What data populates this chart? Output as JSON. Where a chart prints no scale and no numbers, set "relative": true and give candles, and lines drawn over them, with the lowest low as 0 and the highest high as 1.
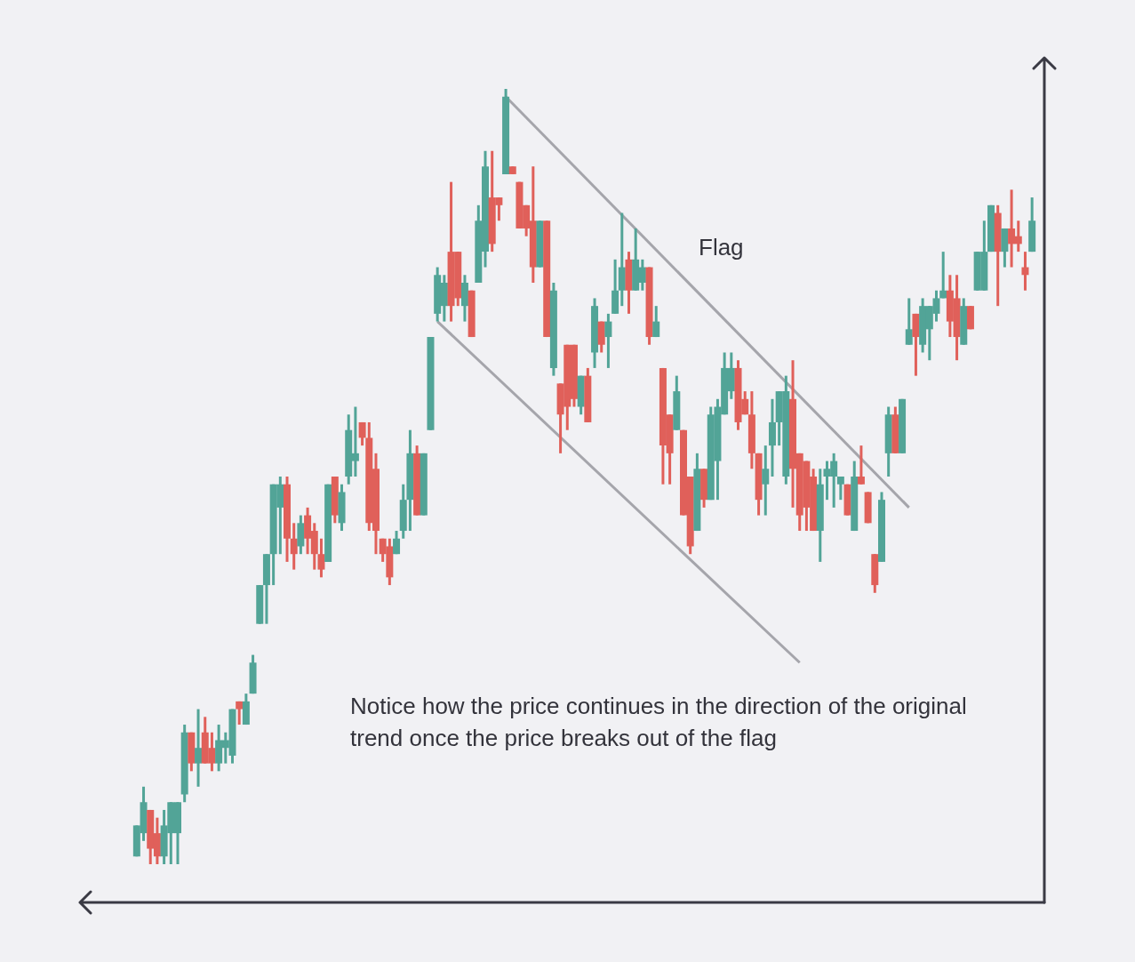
{
  "chart_data": {
    "type": "candlestick",
    "relative": true,
    "categories": [
      null,
      null,
      null,
      null,
      null,
      null,
      null,
      null,
      null,
      null,
      null,
      null,
      null,
      null,
      null,
      null,
      null,
      null,
      null,
      null,
      null,
      null,
      null,
      null,
      null,
      null,
      null,
      null,
      null,
      null,
      null,
      null,
      null,
      null,
      null,
      null,
      null,
      null,
      null,
      null,
      null,
      null,
      null,
      null,
      null,
      null,
      null,
      null,
      null,
      null,
      null,
      null,
      null,
      null,
      null,
      null,
      null,
      null,
      null,
      null,
      null,
      null,
      null,
      null,
      null,
      null,
      null,
      null,
      null,
      null,
      null,
      null,
      null,
      null,
      null,
      null,
      null,
      null,
      null,
      null,
      null,
      null,
      null,
      null,
      null,
      null,
      null,
      null,
      null,
      null,
      null,
      null,
      null,
      null,
      null,
      null,
      null,
      null,
      null,
      null,
      null,
      null,
      null,
      null,
      null,
      null,
      null,
      null,
      null,
      null,
      null,
      null,
      null,
      null,
      null,
      null,
      null,
      null,
      null,
      null,
      null,
      null,
      null,
      null,
      null,
      null,
      null,
      null,
      null,
      null,
      null,
      null
    ],
    "ohlc": [
      [
        0.01,
        0.05,
        0.01,
        0.05
      ],
      [
        0.04,
        0.1,
        0.03,
        0.08
      ],
      [
        0.07,
        0.07,
        0,
        0.02
      ],
      [
        0.04,
        0.06,
        0,
        0.01
      ],
      [
        0.01,
        0.07,
        0,
        0.05
      ],
      [
        0.04,
        0.08,
        0,
        0.08
      ],
      [
        0.04,
        0.08,
        0,
        0.08
      ],
      [
        0.09,
        0.18,
        0.08,
        0.17
      ],
      [
        0.17,
        0.17,
        0.12,
        0.13
      ],
      [
        0.13,
        0.2,
        0.1,
        0.15
      ],
      [
        0.17,
        0.19,
        0.13,
        0.13
      ],
      [
        0.15,
        0.17,
        0.12,
        0.13
      ],
      [
        0.13,
        0.18,
        0.12,
        0.16
      ],
      [
        0.15,
        0.17,
        0.13,
        0.16
      ],
      [
        0.14,
        0.2,
        0.13,
        0.2
      ],
      [
        0.21,
        0.21,
        0.18,
        0.2
      ],
      [
        0.18,
        0.22,
        0.18,
        0.21
      ],
      [
        0.22,
        0.27,
        0.22,
        0.26
      ],
      [
        0.31,
        0.36,
        0.31,
        0.36
      ],
      [
        0.36,
        0.4,
        0.31,
        0.4
      ],
      [
        0.4,
        0.49,
        0.36,
        0.49
      ],
      [
        0.46,
        0.5,
        0.4,
        0.49
      ],
      [
        0.49,
        0.5,
        0.39,
        0.42
      ],
      [
        0.42,
        0.44,
        0.38,
        0.4
      ],
      [
        0.41,
        0.45,
        0.4,
        0.44
      ],
      [
        0.45,
        0.46,
        0.4,
        0.42
      ],
      [
        0.43,
        0.44,
        0.38,
        0.4
      ],
      [
        0.4,
        0.42,
        0.37,
        0.38
      ],
      [
        0.39,
        0.49,
        0.39,
        0.49
      ],
      [
        0.5,
        0.5,
        0.44,
        0.45
      ],
      [
        0.44,
        0.49,
        0.43,
        0.48
      ],
      [
        0.5,
        0.58,
        0.49,
        0.56
      ],
      [
        0.52,
        0.59,
        0.5,
        0.53
      ],
      [
        0.57,
        0.57,
        0.54,
        0.55
      ],
      [
        0.55,
        0.57,
        0.43,
        0.44
      ],
      [
        0.51,
        0.53,
        0.4,
        0.43
      ],
      [
        0.42,
        0.42,
        0.39,
        0.4
      ],
      [
        0.41,
        0.42,
        0.36,
        0.37
      ],
      [
        0.4,
        0.43,
        0.4,
        0.42
      ],
      [
        0.43,
        0.49,
        0.42,
        0.47
      ],
      [
        0.47,
        0.56,
        0.43,
        0.53
      ],
      [
        0.53,
        0.54,
        0.45,
        0.45
      ],
      [
        0.45,
        0.53,
        0.45,
        0.53
      ],
      [
        0.56,
        0.68,
        0.56,
        0.68
      ],
      [
        0.71,
        0.77,
        0.7,
        0.76
      ],
      [
        0.72,
        0.76,
        0.7,
        0.75
      ],
      [
        0.79,
        0.88,
        0.7,
        0.72
      ],
      [
        0.79,
        0.79,
        0.72,
        0.73
      ],
      [
        0.72,
        0.76,
        0.7,
        0.75
      ],
      [
        0.74,
        0.74,
        0.68,
        0.68
      ],
      [
        0.75,
        0.85,
        0.75,
        0.83
      ],
      [
        0.79,
        0.92,
        0.77,
        0.9
      ],
      [
        0.86,
        0.92,
        0.79,
        0.8
      ],
      [
        0.86,
        0.86,
        0.83,
        0.85
      ],
      [
        0.89,
        1,
        0.89,
        0.99
      ],
      [
        0.9,
        0.9,
        0.89,
        0.89
      ],
      [
        0.88,
        0.88,
        0.82,
        0.82
      ],
      [
        0.85,
        0.85,
        0.81,
        0.82
      ],
      [
        0.83,
        0.9,
        0.75,
        0.77
      ],
      [
        0.77,
        0.83,
        0.77,
        0.83
      ],
      [
        0.83,
        0.83,
        0.68,
        0.68
      ],
      [
        0.64,
        0.75,
        0.63,
        0.74
      ],
      [
        0.62,
        0.62,
        0.53,
        0.58
      ],
      [
        0.67,
        0.67,
        0.56,
        0.59
      ],
      [
        0.67,
        0.67,
        0.59,
        0.6
      ],
      [
        0.59,
        0.63,
        0.58,
        0.63
      ],
      [
        0.63,
        0.64,
        0.57,
        0.57
      ],
      [
        0.66,
        0.73,
        0.64,
        0.72
      ],
      [
        0.7,
        0.7,
        0.66,
        0.67
      ],
      [
        0.68,
        0.71,
        0.64,
        0.7
      ],
      [
        0.71,
        0.78,
        0.71,
        0.74
      ],
      [
        0.74,
        0.84,
        0.72,
        0.77
      ],
      [
        0.78,
        0.79,
        0.71,
        0.74
      ],
      [
        0.74,
        0.82,
        0.74,
        0.78
      ],
      [
        0.75,
        0.78,
        0.74,
        0.77
      ],
      [
        0.77,
        0.77,
        0.67,
        0.68
      ],
      [
        0.68,
        0.72,
        0.68,
        0.7
      ],
      [
        0.64,
        0.64,
        0.49,
        0.54
      ],
      [
        0.58,
        0.58,
        0.49,
        0.53
      ],
      [
        0.56,
        0.63,
        0.56,
        0.61
      ],
      [
        0.56,
        0.56,
        0.45,
        0.45
      ],
      [
        0.5,
        0.5,
        0.4,
        0.41
      ],
      [
        0.43,
        0.53,
        0.43,
        0.51
      ],
      [
        0.51,
        0.51,
        0.46,
        0.47
      ],
      [
        0.47,
        0.59,
        0.47,
        0.58
      ],
      [
        0.52,
        0.6,
        0.47,
        0.59
      ],
      [
        0.58,
        0.66,
        0.58,
        0.64
      ],
      [
        0.61,
        0.66,
        0.6,
        0.64
      ],
      [
        0.64,
        0.65,
        0.56,
        0.57
      ],
      [
        0.6,
        0.61,
        0.58,
        0.58
      ],
      [
        0.58,
        0.61,
        0.51,
        0.53
      ],
      [
        0.53,
        0.53,
        0.45,
        0.47
      ],
      [
        0.49,
        0.54,
        0.45,
        0.51
      ],
      [
        0.54,
        0.6,
        0.5,
        0.57
      ],
      [
        0.57,
        0.61,
        0.54,
        0.61
      ],
      [
        0.5,
        0.63,
        0.49,
        0.61
      ],
      [
        0.6,
        0.65,
        0.46,
        0.51
      ],
      [
        0.53,
        0.53,
        0.43,
        0.45
      ],
      [
        0.52,
        0.52,
        0.43,
        0.46
      ],
      [
        0.5,
        0.51,
        0.43,
        0.43
      ],
      [
        0.43,
        0.51,
        0.39,
        0.49
      ],
      [
        0.5,
        0.52,
        0.47,
        0.51
      ],
      [
        0.5,
        0.53,
        0.46,
        0.52
      ],
      [
        0.49,
        0.5,
        0.47,
        0.5
      ],
      [
        0.49,
        0.49,
        0.45,
        0.45
      ],
      [
        0.43,
        0.52,
        0.43,
        0.5
      ],
      [
        0.5,
        0.54,
        0.49,
        0.49
      ],
      [
        0.48,
        0.48,
        0.44,
        0.44
      ],
      [
        0.4,
        0.4,
        0.35,
        0.36
      ],
      [
        0.39,
        0.48,
        0.39,
        0.47
      ],
      [
        0.53,
        0.59,
        0.5,
        0.58
      ],
      [
        0.58,
        0.59,
        0.53,
        0.53
      ],
      [
        0.53,
        0.6,
        0.53,
        0.6
      ],
      [
        0.67,
        0.73,
        0.67,
        0.69
      ],
      [
        0.71,
        0.71,
        0.63,
        0.68
      ],
      [
        0.67,
        0.73,
        0.66,
        0.72
      ],
      [
        0.69,
        0.72,
        0.65,
        0.72
      ],
      [
        0.71,
        0.74,
        0.7,
        0.73
      ],
      [
        0.73,
        0.79,
        0.73,
        0.74
      ],
      [
        0.74,
        0.76,
        0.68,
        0.7
      ],
      [
        0.73,
        0.76,
        0.65,
        0.68
      ],
      [
        0.67,
        0.73,
        0.67,
        0.72
      ],
      [
        0.72,
        0.72,
        0.69,
        0.69
      ],
      [
        0.74,
        0.79,
        0.74,
        0.79
      ],
      [
        0.74,
        0.83,
        0.74,
        0.79
      ],
      [
        0.79,
        0.85,
        0.79,
        0.85
      ],
      [
        0.84,
        0.85,
        0.72,
        0.79
      ],
      [
        0.79,
        0.82,
        0.77,
        0.82
      ],
      [
        0.82,
        0.87,
        0.77,
        0.8
      ],
      [
        0.81,
        0.83,
        0.79,
        0.8
      ],
      [
        0.77,
        0.79,
        0.74,
        0.76
      ],
      [
        0.79,
        0.86,
        0.79,
        0.83
      ]
    ],
    "colors": [
      "#52a497",
      "#52a497",
      "#e0605a",
      "#e0605a",
      "#52a497",
      "#52a497",
      "#52a497",
      "#52a497",
      "#e0605a",
      "#52a497",
      "#e0605a",
      "#e0605a",
      "#52a497",
      "#52a497",
      "#52a497",
      "#e0605a",
      "#52a497",
      "#52a497",
      "#52a497",
      "#52a497",
      "#52a497",
      "#52a497",
      "#e0605a",
      "#e0605a",
      "#52a497",
      "#e0605a",
      "#e0605a",
      "#e0605a",
      "#52a497",
      "#e0605a",
      "#52a497",
      "#52a497",
      "#52a497",
      "#e0605a",
      "#e0605a",
      "#e0605a",
      "#e0605a",
      "#e0605a",
      "#52a497",
      "#52a497",
      "#52a497",
      "#e0605a",
      "#52a497",
      "#52a497",
      "#52a497",
      "#52a497",
      "#e0605a",
      "#e0605a",
      "#52a497",
      "#e0605a",
      "#52a497",
      "#52a497",
      "#e0605a",
      "#e0605a",
      "#52a497",
      "#e0605a",
      "#e0605a",
      "#e0605a",
      "#e0605a",
      "#52a497",
      "#e0605a",
      "#52a497",
      "#e0605a",
      "#e0605a",
      "#e0605a",
      "#52a497",
      "#e0605a",
      "#52a497",
      "#e0605a",
      "#52a497",
      "#52a497",
      "#52a497",
      "#e0605a",
      "#52a497",
      "#52a497",
      "#e0605a",
      "#52a497",
      "#e0605a",
      "#e0605a",
      "#52a497",
      "#e0605a",
      "#e0605a",
      "#52a497",
      "#e0605a",
      "#52a497",
      "#52a497",
      "#52a497",
      "#52a497",
      "#e0605a",
      "#e0605a",
      "#e0605a",
      "#e0605a",
      "#52a497",
      "#52a497",
      "#52a497",
      "#52a497",
      "#e0605a",
      "#e0605a",
      "#e0605a",
      "#e0605a",
      "#52a497",
      "#52a497",
      "#52a497",
      "#52a497",
      "#e0605a",
      "#52a497",
      "#e0605a",
      "#e0605a",
      "#e0605a",
      "#52a497",
      "#52a497",
      "#e0605a",
      "#52a497",
      "#52a497",
      "#e0605a",
      "#52a497",
      "#52a497",
      "#52a497",
      "#52a497",
      "#e0605a",
      "#e0605a",
      "#52a497",
      "#e0605a",
      "#52a497",
      "#52a497",
      "#52a497",
      "#e0605a",
      "#52a497",
      "#e0605a",
      "#e0605a",
      "#e0605a",
      "#52a497"
    ],
    "series": [
      {
        "type": "line",
        "color": "#a5a5ab",
        "values": [
          null,
          null,
          null,
          null,
          null,
          null,
          null,
          null,
          null,
          null,
          null,
          null,
          null,
          null,
          null,
          null,
          null,
          null,
          null,
          null,
          null,
          null,
          null,
          null,
          null,
          null,
          null,
          null,
          null,
          null,
          null,
          null,
          null,
          null,
          null,
          null,
          null,
          null,
          null,
          null,
          null,
          null,
          null,
          null,
          null,
          null,
          null,
          null,
          null,
          null,
          null,
          null,
          null,
          null,
          0.99,
          null,
          null,
          null,
          null,
          null,
          null,
          null,
          null,
          null,
          null,
          null,
          null,
          null,
          null,
          null,
          null,
          null,
          null,
          null,
          null,
          null,
          null,
          null,
          null,
          null,
          null,
          null,
          null,
          null,
          null,
          null,
          null,
          null,
          null,
          null,
          null,
          null,
          null,
          null,
          null,
          null,
          null,
          null,
          null,
          null,
          null,
          null,
          null,
          null,
          null,
          null,
          null,
          null,
          null,
          null,
          null,
          null,
          null,
          0.46,
          null,
          null,
          null,
          null,
          null,
          null,
          null,
          null,
          null,
          null,
          null,
          null,
          null,
          null,
          null,
          null,
          null,
          null
        ]
      },
      {
        "type": "line",
        "color": "#a5a5ab",
        "values": [
          null,
          null,
          null,
          null,
          null,
          null,
          null,
          null,
          null,
          null,
          null,
          null,
          null,
          null,
          null,
          null,
          null,
          null,
          null,
          null,
          null,
          null,
          null,
          null,
          null,
          null,
          null,
          null,
          null,
          null,
          null,
          null,
          null,
          null,
          null,
          null,
          null,
          null,
          null,
          null,
          null,
          null,
          null,
          null,
          0.7,
          null,
          null,
          null,
          null,
          null,
          null,
          null,
          null,
          null,
          null,
          null,
          null,
          null,
          null,
          null,
          null,
          null,
          null,
          null,
          null,
          null,
          null,
          null,
          null,
          null,
          null,
          null,
          null,
          null,
          null,
          null,
          null,
          null,
          null,
          null,
          null,
          null,
          null,
          null,
          null,
          null,
          null,
          null,
          null,
          null,
          null,
          null,
          null,
          null,
          null,
          null,
          null,
          0.26,
          null,
          null,
          null,
          null,
          null,
          null,
          null,
          null,
          null,
          null,
          null,
          null,
          null,
          null,
          null,
          null,
          null,
          null,
          null,
          null,
          null,
          null,
          null,
          null,
          null,
          null,
          null,
          null,
          null,
          null,
          null,
          null,
          null,
          null
        ]
      }
    ],
    "annotations": [
      "Flag",
      "Notice how the price continues in the direction of the original trend once the price breaks out of the flag"
    ]
  }
}
